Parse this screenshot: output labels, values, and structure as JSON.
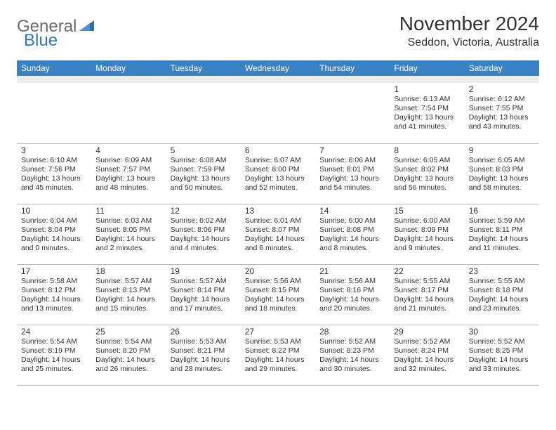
{
  "logo": {
    "part1": "General",
    "part2": "Blue"
  },
  "title": "November 2024",
  "location": "Seddon, Victoria, Australia",
  "header_bg": "#3b82c4",
  "dow": [
    "Sunday",
    "Monday",
    "Tuesday",
    "Wednesday",
    "Thursday",
    "Friday",
    "Saturday"
  ],
  "weeks": [
    [
      null,
      null,
      null,
      null,
      null,
      {
        "d": "1",
        "rise": "6:13 AM",
        "set": "7:54 PM",
        "dl": "13 hours and 41 minutes."
      },
      {
        "d": "2",
        "rise": "6:12 AM",
        "set": "7:55 PM",
        "dl": "13 hours and 43 minutes."
      }
    ],
    [
      {
        "d": "3",
        "rise": "6:10 AM",
        "set": "7:56 PM",
        "dl": "13 hours and 45 minutes."
      },
      {
        "d": "4",
        "rise": "6:09 AM",
        "set": "7:57 PM",
        "dl": "13 hours and 48 minutes."
      },
      {
        "d": "5",
        "rise": "6:08 AM",
        "set": "7:59 PM",
        "dl": "13 hours and 50 minutes."
      },
      {
        "d": "6",
        "rise": "6:07 AM",
        "set": "8:00 PM",
        "dl": "13 hours and 52 minutes."
      },
      {
        "d": "7",
        "rise": "6:06 AM",
        "set": "8:01 PM",
        "dl": "13 hours and 54 minutes."
      },
      {
        "d": "8",
        "rise": "6:05 AM",
        "set": "8:02 PM",
        "dl": "13 hours and 56 minutes."
      },
      {
        "d": "9",
        "rise": "6:05 AM",
        "set": "8:03 PM",
        "dl": "13 hours and 58 minutes."
      }
    ],
    [
      {
        "d": "10",
        "rise": "6:04 AM",
        "set": "8:04 PM",
        "dl": "14 hours and 0 minutes."
      },
      {
        "d": "11",
        "rise": "6:03 AM",
        "set": "8:05 PM",
        "dl": "14 hours and 2 minutes."
      },
      {
        "d": "12",
        "rise": "6:02 AM",
        "set": "8:06 PM",
        "dl": "14 hours and 4 minutes."
      },
      {
        "d": "13",
        "rise": "6:01 AM",
        "set": "8:07 PM",
        "dl": "14 hours and 6 minutes."
      },
      {
        "d": "14",
        "rise": "6:00 AM",
        "set": "8:08 PM",
        "dl": "14 hours and 8 minutes."
      },
      {
        "d": "15",
        "rise": "6:00 AM",
        "set": "8:09 PM",
        "dl": "14 hours and 9 minutes."
      },
      {
        "d": "16",
        "rise": "5:59 AM",
        "set": "8:11 PM",
        "dl": "14 hours and 11 minutes."
      }
    ],
    [
      {
        "d": "17",
        "rise": "5:58 AM",
        "set": "8:12 PM",
        "dl": "14 hours and 13 minutes."
      },
      {
        "d": "18",
        "rise": "5:57 AM",
        "set": "8:13 PM",
        "dl": "14 hours and 15 minutes."
      },
      {
        "d": "19",
        "rise": "5:57 AM",
        "set": "8:14 PM",
        "dl": "14 hours and 17 minutes."
      },
      {
        "d": "20",
        "rise": "5:56 AM",
        "set": "8:15 PM",
        "dl": "14 hours and 18 minutes."
      },
      {
        "d": "21",
        "rise": "5:56 AM",
        "set": "8:16 PM",
        "dl": "14 hours and 20 minutes."
      },
      {
        "d": "22",
        "rise": "5:55 AM",
        "set": "8:17 PM",
        "dl": "14 hours and 21 minutes."
      },
      {
        "d": "23",
        "rise": "5:55 AM",
        "set": "8:18 PM",
        "dl": "14 hours and 23 minutes."
      }
    ],
    [
      {
        "d": "24",
        "rise": "5:54 AM",
        "set": "8:19 PM",
        "dl": "14 hours and 25 minutes."
      },
      {
        "d": "25",
        "rise": "5:54 AM",
        "set": "8:20 PM",
        "dl": "14 hours and 26 minutes."
      },
      {
        "d": "26",
        "rise": "5:53 AM",
        "set": "8:21 PM",
        "dl": "14 hours and 28 minutes."
      },
      {
        "d": "27",
        "rise": "5:53 AM",
        "set": "8:22 PM",
        "dl": "14 hours and 29 minutes."
      },
      {
        "d": "28",
        "rise": "5:52 AM",
        "set": "8:23 PM",
        "dl": "14 hours and 30 minutes."
      },
      {
        "d": "29",
        "rise": "5:52 AM",
        "set": "8:24 PM",
        "dl": "14 hours and 32 minutes."
      },
      {
        "d": "30",
        "rise": "5:52 AM",
        "set": "8:25 PM",
        "dl": "14 hours and 33 minutes."
      }
    ]
  ],
  "labels": {
    "sunrise": "Sunrise: ",
    "sunset": "Sunset: ",
    "daylight": "Daylight: "
  }
}
